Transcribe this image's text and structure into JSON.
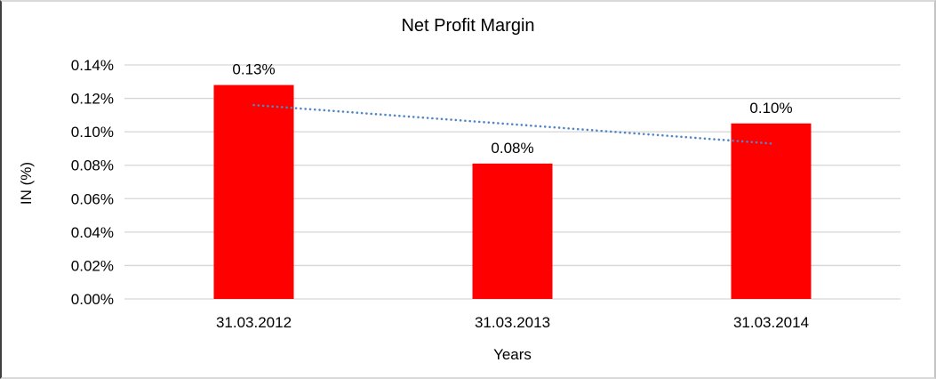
{
  "chart_data": {
    "type": "bar",
    "title": "Net Profit Margin",
    "xlabel": "Years",
    "ylabel": "IN (%)",
    "categories": [
      "31.03.2012",
      "31.03.2013",
      "31.03.2014"
    ],
    "values": [
      0.128,
      0.081,
      0.105
    ],
    "data_labels": [
      "0.13%",
      "0.08%",
      "0.10%"
    ],
    "ylim": [
      0,
      0.14
    ],
    "ytick_step": 0.02,
    "ytick_labels": [
      "0.00%",
      "0.02%",
      "0.04%",
      "0.06%",
      "0.08%",
      "0.10%",
      "0.12%",
      "0.14%"
    ],
    "grid": true,
    "legend": "none",
    "bar_color": "#ff0000",
    "gridline_color": "#d6d6d6",
    "text_color": "#000000",
    "trendline": {
      "style": "dotted",
      "color": "#4f86c8",
      "start_value": 0.116,
      "end_value": 0.093
    }
  }
}
